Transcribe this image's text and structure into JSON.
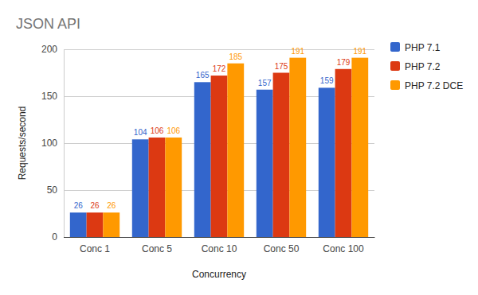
{
  "chart_data": {
    "type": "bar",
    "title": "JSON API",
    "x_label": "Concurrency",
    "y_label": "Requests/second",
    "categories": [
      "Conc 1",
      "Conc 5",
      "Conc 10",
      "Conc 50",
      "Conc 100"
    ],
    "series": [
      {
        "name": "PHP 7.1",
        "color": "#3366cc",
        "values": [
          26,
          104,
          165,
          157,
          159
        ]
      },
      {
        "name": "PHP 7.2",
        "color": "#dc3912",
        "values": [
          26,
          106,
          172,
          175,
          179
        ]
      },
      {
        "name": "PHP 7.2 DCE",
        "color": "#ff9900",
        "values": [
          26,
          106,
          185,
          191,
          191
        ]
      }
    ],
    "ylim": [
      0,
      200
    ],
    "yticks": [
      0,
      50,
      100,
      150,
      200
    ],
    "grid": true,
    "legend": "right",
    "data_labels": true
  }
}
